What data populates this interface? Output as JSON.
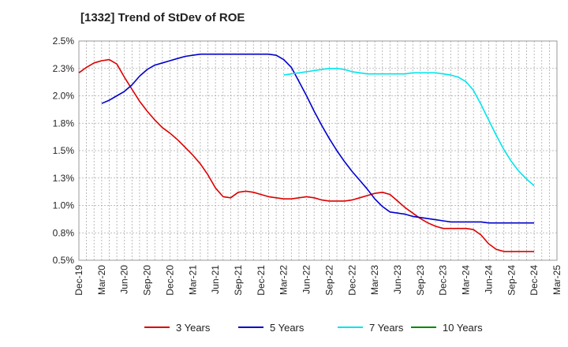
{
  "chart_data": {
    "type": "line",
    "title": "[1332]  Trend of StDev of ROE",
    "xlabel": "",
    "ylabel": "",
    "x_ticks": [
      "Dec-19",
      "Mar-20",
      "Jun-20",
      "Sep-20",
      "Dec-20",
      "Mar-21",
      "Jun-21",
      "Sep-21",
      "Dec-21",
      "Mar-22",
      "Jun-22",
      "Sep-22",
      "Dec-22",
      "Mar-23",
      "Jun-23",
      "Sep-23",
      "Dec-23",
      "Mar-24",
      "Jun-24",
      "Sep-24",
      "Dec-24",
      "Mar-25"
    ],
    "y_ticks": [
      "0.5%",
      "0.8%",
      "1.0%",
      "1.3%",
      "1.5%",
      "1.8%",
      "2.0%",
      "2.3%",
      "2.5%"
    ],
    "ylim": [
      0.5,
      2.5
    ],
    "grid": true,
    "legend_position": "bottom",
    "series": [
      {
        "name": "3 Years",
        "color": "#dd0000",
        "x": [
          "Dec-19",
          "Jan-20",
          "Feb-20",
          "Mar-20",
          "Apr-20",
          "May-20",
          "Jun-20",
          "Jul-20",
          "Aug-20",
          "Sep-20",
          "Oct-20",
          "Nov-20",
          "Dec-20",
          "Jan-21",
          "Feb-21",
          "Mar-21",
          "Apr-21",
          "May-21",
          "Jun-21",
          "Jul-21",
          "Aug-21",
          "Sep-21",
          "Oct-21",
          "Nov-21",
          "Dec-21",
          "Jan-22",
          "Feb-22",
          "Mar-22",
          "Apr-22",
          "May-22",
          "Jun-22",
          "Jul-22",
          "Aug-22",
          "Sep-22",
          "Oct-22",
          "Nov-22",
          "Dec-22",
          "Jan-23",
          "Feb-23",
          "Mar-23",
          "Apr-23",
          "May-23",
          "Jun-23",
          "Jul-23",
          "Aug-23",
          "Sep-23",
          "Oct-23",
          "Nov-23",
          "Dec-23",
          "Jan-24",
          "Feb-24",
          "Mar-24",
          "Apr-24",
          "May-24",
          "Jun-24",
          "Jul-24",
          "Aug-24",
          "Sep-24",
          "Oct-24",
          "Nov-24",
          "Dec-24"
        ],
        "values": [
          2.21,
          2.26,
          2.3,
          2.32,
          2.33,
          2.29,
          2.17,
          2.06,
          1.95,
          1.86,
          1.78,
          1.71,
          1.66,
          1.6,
          1.53,
          1.46,
          1.38,
          1.28,
          1.16,
          1.08,
          1.07,
          1.12,
          1.13,
          1.12,
          1.1,
          1.08,
          1.07,
          1.06,
          1.06,
          1.07,
          1.08,
          1.07,
          1.05,
          1.04,
          1.04,
          1.04,
          1.05,
          1.07,
          1.09,
          1.11,
          1.12,
          1.1,
          1.04,
          0.98,
          0.93,
          0.88,
          0.84,
          0.81,
          0.79,
          0.79,
          0.79,
          0.79,
          0.78,
          0.73,
          0.65,
          0.6,
          0.58,
          0.58,
          0.58,
          0.58,
          0.58
        ]
      },
      {
        "name": "5 Years",
        "color": "#0000cc",
        "x": [
          "Mar-20",
          "Apr-20",
          "May-20",
          "Jun-20",
          "Jul-20",
          "Aug-20",
          "Sep-20",
          "Oct-20",
          "Nov-20",
          "Dec-20",
          "Jan-21",
          "Feb-21",
          "Mar-21",
          "Apr-21",
          "May-21",
          "Jun-21",
          "Jul-21",
          "Aug-21",
          "Sep-21",
          "Oct-21",
          "Nov-21",
          "Dec-21",
          "Jan-22",
          "Feb-22",
          "Mar-22",
          "Apr-22",
          "May-22",
          "Jun-22",
          "Jul-22",
          "Aug-22",
          "Sep-22",
          "Oct-22",
          "Nov-22",
          "Dec-22",
          "Jan-23",
          "Feb-23",
          "Mar-23",
          "Apr-23",
          "May-23",
          "Jun-23",
          "Jul-23",
          "Aug-23",
          "Sep-23",
          "Oct-23",
          "Nov-23",
          "Dec-23",
          "Jan-24",
          "Feb-24",
          "Mar-24",
          "Apr-24",
          "May-24",
          "Jun-24",
          "Jul-24",
          "Aug-24",
          "Sep-24",
          "Oct-24",
          "Nov-24",
          "Dec-24"
        ],
        "values": [
          1.93,
          1.96,
          2.0,
          2.04,
          2.1,
          2.18,
          2.24,
          2.28,
          2.3,
          2.32,
          2.34,
          2.36,
          2.37,
          2.38,
          2.38,
          2.38,
          2.38,
          2.38,
          2.38,
          2.38,
          2.38,
          2.38,
          2.38,
          2.37,
          2.33,
          2.26,
          2.13,
          2.0,
          1.86,
          1.73,
          1.61,
          1.5,
          1.4,
          1.31,
          1.23,
          1.15,
          1.06,
          0.99,
          0.94,
          0.93,
          0.92,
          0.9,
          0.89,
          0.88,
          0.87,
          0.86,
          0.85,
          0.85,
          0.85,
          0.85,
          0.85,
          0.84,
          0.84,
          0.84,
          0.84,
          0.84,
          0.84,
          0.84
        ]
      },
      {
        "name": "7 Years",
        "color": "#00e5ee",
        "x": [
          "Mar-22",
          "Apr-22",
          "May-22",
          "Jun-22",
          "Jul-22",
          "Aug-22",
          "Sep-22",
          "Oct-22",
          "Nov-22",
          "Dec-22",
          "Jan-23",
          "Feb-23",
          "Mar-23",
          "Apr-23",
          "May-23",
          "Jun-23",
          "Jul-23",
          "Aug-23",
          "Sep-23",
          "Oct-23",
          "Nov-23",
          "Dec-23",
          "Jan-24",
          "Feb-24",
          "Mar-24",
          "Apr-24",
          "May-24",
          "Jun-24",
          "Jul-24",
          "Aug-24",
          "Sep-24",
          "Oct-24",
          "Nov-24",
          "Dec-24"
        ],
        "values": [
          2.19,
          2.2,
          2.21,
          2.22,
          2.23,
          2.24,
          2.25,
          2.25,
          2.24,
          2.22,
          2.21,
          2.2,
          2.2,
          2.2,
          2.2,
          2.2,
          2.2,
          2.21,
          2.21,
          2.21,
          2.21,
          2.2,
          2.19,
          2.17,
          2.13,
          2.05,
          1.92,
          1.78,
          1.64,
          1.51,
          1.4,
          1.31,
          1.24,
          1.18
        ]
      },
      {
        "name": "10 Years",
        "color": "#008800",
        "x": [],
        "values": []
      }
    ]
  }
}
